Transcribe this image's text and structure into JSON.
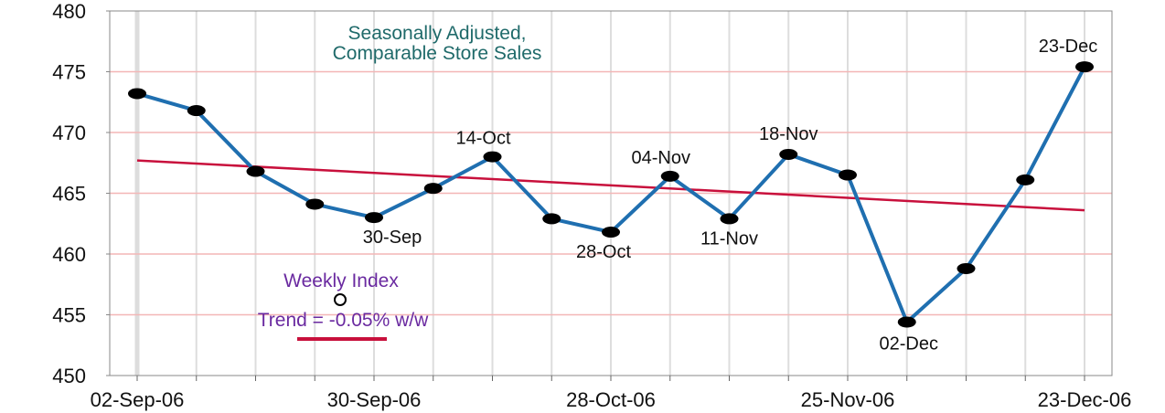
{
  "colors": {
    "series": "#1f6fb0",
    "marker": "#000000",
    "trend": "#c8103c",
    "title": "#1f6a6a",
    "legend_text": "#6a2aa0",
    "gridline": "#f3b6b6",
    "vgrid": "#dddddd"
  },
  "chart_data": {
    "type": "line",
    "title": "Seasonally Adjusted,",
    "subtitle": "Comparable Store Sales",
    "xlabel": "",
    "ylabel": "",
    "ylim": [
      450,
      480
    ],
    "yticks": [
      450,
      455,
      460,
      465,
      470,
      475,
      480
    ],
    "x": [
      "02-Sep-06",
      "09-Sep-06",
      "16-Sep-06",
      "23-Sep-06",
      "30-Sep-06",
      "07-Oct-06",
      "14-Oct-06",
      "21-Oct-06",
      "28-Oct-06",
      "04-Nov-06",
      "11-Nov-06",
      "18-Nov-06",
      "25-Nov-06",
      "02-Dec-06",
      "09-Dec-06",
      "16-Dec-06",
      "23-Dec-06"
    ],
    "xtick_labels": [
      "02-Sep-06",
      "30-Sep-06",
      "28-Oct-06",
      "25-Nov-06",
      "23-Dec-06"
    ],
    "series": [
      {
        "name": "Weekly Index",
        "values": [
          473.2,
          471.8,
          466.8,
          464.1,
          463.0,
          465.4,
          468.0,
          462.9,
          461.8,
          466.4,
          462.9,
          468.2,
          466.5,
          454.4,
          458.8,
          466.1,
          475.4
        ]
      }
    ],
    "trend": {
      "name": "Trend = -0.05% w/w",
      "start": 467.7,
      "end": 463.6
    },
    "point_labels": [
      {
        "index": 4,
        "text": "30-Sep",
        "position": "below"
      },
      {
        "index": 6,
        "text": "14-Oct",
        "position": "above"
      },
      {
        "index": 8,
        "text": "28-Oct",
        "position": "below"
      },
      {
        "index": 9,
        "text": "04-Nov",
        "position": "above"
      },
      {
        "index": 10,
        "text": "11-Nov",
        "position": "below"
      },
      {
        "index": 11,
        "text": "18-Nov",
        "position": "above"
      },
      {
        "index": 13,
        "text": "02-Dec",
        "position": "below"
      },
      {
        "index": 16,
        "text": "23-Dec",
        "position": "above"
      }
    ],
    "grid": true,
    "legend": {
      "position": "bottom-left",
      "items": [
        "Weekly Index",
        "Trend = -0.05% w/w"
      ]
    }
  }
}
